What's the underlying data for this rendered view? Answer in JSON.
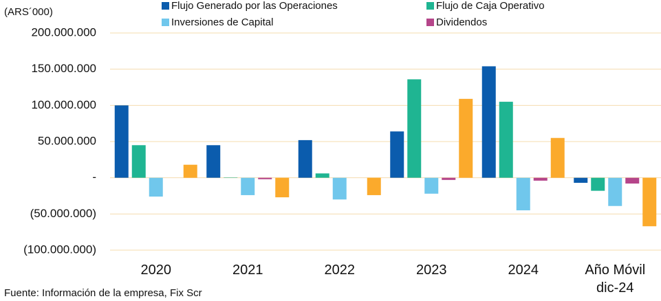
{
  "chart_data": {
    "type": "bar",
    "y_axis_label": "(ARS´000)",
    "source": "Fuente: Información de la empresa, Fix Scr",
    "categories": [
      "2020",
      "2021",
      "2022",
      "2023",
      "2024",
      "Año Móvil dic-24"
    ],
    "series": [
      {
        "name": "Flujo Generado por las Operaciones",
        "color": "#0b5cad",
        "values": [
          100000000,
          45000000,
          52000000,
          64000000,
          154000000,
          -7000000
        ]
      },
      {
        "name": "Flujo de Caja Operativo",
        "color": "#1fb592",
        "values": [
          45000000,
          500000,
          6000000,
          136000000,
          105000000,
          -18000000
        ]
      },
      {
        "name": "Inversiones de Capital",
        "color": "#70c7ec",
        "values": [
          -26000000,
          -24000000,
          -30000000,
          -22000000,
          -45000000,
          -39000000
        ]
      },
      {
        "name": "Dividendos",
        "color": "#b5458a",
        "values": [
          0,
          -2000000,
          0,
          -3000000,
          -4000000,
          -8000000
        ]
      },
      {
        "color": "#fbaa2c",
        "values": [
          18000000,
          -27000000,
          -24000000,
          109000000,
          55000000,
          -67000000
        ]
      }
    ],
    "ylim": [
      -100000000,
      200000000
    ],
    "yticks": [
      {
        "value": -100000000,
        "label": "(100.000.000)"
      },
      {
        "value": -50000000,
        "label": "(50.000.000)"
      },
      {
        "value": 0,
        "label": "-"
      },
      {
        "value": 50000000,
        "label": "50.000.000"
      },
      {
        "value": 100000000,
        "label": "100.000.000"
      },
      {
        "value": 150000000,
        "label": "150.000.000"
      },
      {
        "value": 200000000,
        "label": "200.000.000"
      }
    ],
    "grid": true,
    "grid_color": "#f5dcae"
  }
}
